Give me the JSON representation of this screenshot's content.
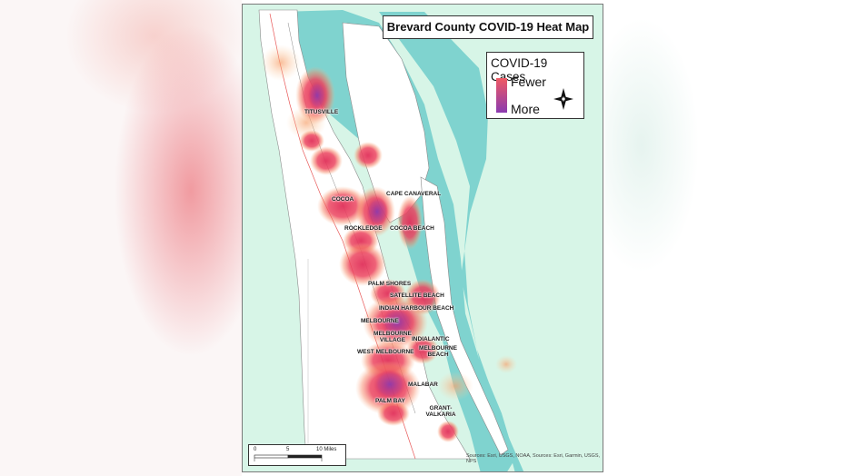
{
  "map": {
    "title": "Brevard County COVID-19 Heat Map",
    "legend": {
      "title": "COVID-19 Cases",
      "low_label": "Fewer",
      "high_label": "More",
      "low_color": "#f05a64",
      "high_color": "#8a3bb0"
    },
    "scale_bar": {
      "labels": [
        "0",
        "5",
        "10 Miles"
      ]
    },
    "sources": "Sources: Esri, USGS, NOAA, Sources: Esri, Garmin, USGS, NPS",
    "colors": {
      "water": "#7fd3cf",
      "land": "#d7f5e7",
      "county": "#ffffff",
      "hotspot_edge": "#f46a5a",
      "hotspot_core": "#e0305a",
      "hotspot_dense": "#9a3aa8"
    },
    "places": [
      "TITUSVILLE",
      "COCOA",
      "CAPE CANAVERAL",
      "ROCKLEDGE",
      "COCOA BEACH",
      "PALM SHORES",
      "SATELLITE BEACH",
      "INDIAN HARBOUR BEACH",
      "MELBOURNE",
      "MELBOURNE VILLAGE",
      "INDIALANTIC",
      "WEST MELBOURNE",
      "MELBOURNE BEACH",
      "MALABAR",
      "PALM BAY",
      "GRANT-VALKARIA"
    ]
  }
}
